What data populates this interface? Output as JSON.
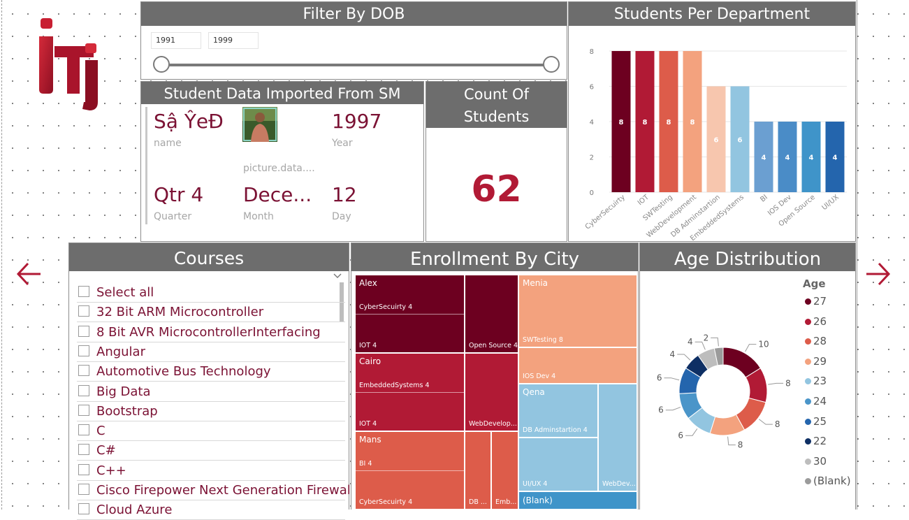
{
  "filter": {
    "title": "Filter By DOB",
    "from": "1991",
    "to": "1999"
  },
  "students_dept": {
    "title": "Students Per Department"
  },
  "student_card": {
    "title": "Student Data Imported From SM",
    "name_value": "Sậ ŶeĐ",
    "name_label": "name",
    "picture_label": "picture.data....",
    "year_value": "1997",
    "year_label": "Year",
    "quarter_value": "Qtr 4",
    "quarter_label": "Quarter",
    "month_value": "Dece...",
    "month_label": "Month",
    "day_value": "12",
    "day_label": "Day"
  },
  "count_card": {
    "title_line1": "Count Of",
    "title_line2": "Students",
    "value": "62"
  },
  "courses": {
    "title": "Courses",
    "items": [
      "Select all",
      "32 Bit ARM Microcontroller",
      "8 Bit AVR MicrocontrollerInterfacing",
      "Angular",
      "Automotive Bus Technology",
      "Big Data",
      "Bootstrap",
      "C",
      "C#",
      "C++",
      "Cisco Firepower Next Generation Firewall",
      "Cloud Azure"
    ]
  },
  "enrollment": {
    "title": "Enrollment By City",
    "cities": [
      "Alex",
      "Cairo",
      "Mans",
      "Menia",
      "Qena",
      "(Blank)"
    ],
    "labels": {
      "alex_cyber": "CyberSecuirty 4",
      "alex_iot": "IOT 4",
      "alex_os": "Open Source 4",
      "cairo_emb": "EmbeddedSystems 4",
      "cairo_iot": "IOT 4",
      "cairo_web": "WebDevelop...",
      "mans_bi": "BI 4",
      "mans_cyber": "CyberSecuirty 4",
      "mans_db": "DB ...",
      "mans_emb": "Emb...",
      "menia_sw": "SWTesting 8",
      "menia_ios": "IOS Dev 4",
      "qena_db": "DB Adminstartion 4",
      "qena_ux": "UI/UX 4",
      "qena_web": "WebDev..."
    }
  },
  "age": {
    "title": "Age Distribution",
    "legend_title": "Age"
  },
  "colors": {
    "dark_red": "#6d0020",
    "red": "#b11a35",
    "coral": "#dd5c4a",
    "peach": "#f3a27e",
    "light_peach": "#f7c6ae",
    "light_blue": "#92c5e0",
    "mid_blue": "#6b9fd1",
    "blue": "#4a8cc7",
    "blue2": "#3f94c9",
    "dark_blue": "#2465ad",
    "navy": "#0e2f64",
    "grey": "#bdbdbd",
    "dark_grey": "#9b9b9b",
    "header_grey": "#6d6d6d",
    "accent_text": "#7b1234"
  },
  "chart_data": [
    {
      "type": "bar",
      "title": "Students Per Department",
      "categories": [
        "CyberSecuirty",
        "IOT",
        "SWTesting",
        "WebDevelopment",
        "DB Adminstartion",
        "EmbeddedSystems",
        "BI",
        "IOS Dev",
        "Open Source",
        "UI/UX"
      ],
      "values": [
        8,
        8,
        8,
        8,
        6,
        6,
        4,
        4,
        4,
        4
      ],
      "colors": [
        "#6d0020",
        "#b11a35",
        "#dd5c4a",
        "#f3a27e",
        "#f7c6ae",
        "#92c5e0",
        "#6b9fd1",
        "#4a8cc7",
        "#3f94c9",
        "#2465ad"
      ],
      "ylim": [
        0,
        8
      ],
      "yticks": [
        0,
        2,
        4,
        6,
        8
      ],
      "grid": true
    },
    {
      "type": "pie",
      "title": "Age Distribution",
      "legend_title": "Age",
      "categories": [
        "27",
        "26",
        "28",
        "29",
        "23",
        "24",
        "25",
        "22",
        "30",
        "(Blank)"
      ],
      "values": [
        10,
        8,
        8,
        8,
        6,
        6,
        6,
        4,
        4,
        2
      ],
      "colors": [
        "#6d0020",
        "#b11a35",
        "#dd5c4a",
        "#f3a27e",
        "#92c5e0",
        "#4a95c9",
        "#2465ad",
        "#0e2f64",
        "#bdbdbd",
        "#9b9b9b"
      ],
      "legend_position": "right",
      "donut": true
    },
    {
      "type": "treemap",
      "title": "Enrollment By City",
      "groups": [
        {
          "name": "Alex",
          "items": [
            {
              "name": "CyberSecuirty",
              "value": 4
            },
            {
              "name": "IOT",
              "value": 4
            },
            {
              "name": "Open Source",
              "value": 4
            }
          ]
        },
        {
          "name": "Cairo",
          "items": [
            {
              "name": "EmbeddedSystems",
              "value": 4
            },
            {
              "name": "IOT",
              "value": 4
            },
            {
              "name": "WebDevelop...",
              "value": 4
            }
          ]
        },
        {
          "name": "Mans",
          "items": [
            {
              "name": "BI",
              "value": 4
            },
            {
              "name": "CyberSecuirty",
              "value": 4
            },
            {
              "name": "DB ...",
              "value": 2
            },
            {
              "name": "Emb...",
              "value": 2
            }
          ]
        },
        {
          "name": "Menia",
          "items": [
            {
              "name": "SWTesting",
              "value": 8
            },
            {
              "name": "IOS Dev",
              "value": 4
            }
          ]
        },
        {
          "name": "Qena",
          "items": [
            {
              "name": "DB Adminstartion",
              "value": 4
            },
            {
              "name": "UI/UX",
              "value": 4
            },
            {
              "name": "WebDev...",
              "value": 4
            }
          ]
        },
        {
          "name": "(Blank)",
          "items": []
        }
      ]
    }
  ]
}
